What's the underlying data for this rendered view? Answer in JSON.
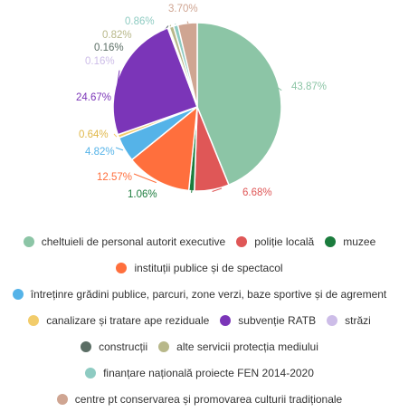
{
  "chart_data": {
    "type": "pie",
    "title": "",
    "series": [
      {
        "name": "cheltuieli de personal autorit executive",
        "value": 43.87,
        "label": "43.87%",
        "color": "#8cc5a6"
      },
      {
        "name": "poliție locală",
        "value": 6.68,
        "label": "6.68%",
        "color": "#df5757"
      },
      {
        "name": "muzee",
        "value": 1.06,
        "label": "1.06%",
        "color": "#1b7c3d"
      },
      {
        "name": "instituții publice și de spectacol",
        "value": 12.57,
        "label": "12.57%",
        "color": "#ff6f3d"
      },
      {
        "name": "întreținre grădini publice, parcuri, zone verzi, baze sportive și de agrement",
        "value": 4.82,
        "label": "4.82%",
        "color": "#55b3e8"
      },
      {
        "name": "canalizare și tratare ape reziduale",
        "value": 0.64,
        "label": "0.64%",
        "color": "#f2cc6b"
      },
      {
        "name": "subvenție RATB",
        "value": 24.67,
        "label": "24.67%",
        "color": "#7b35b8"
      },
      {
        "name": "străzi",
        "value": 0.16,
        "label": "0.16%",
        "color": "#cdbde8"
      },
      {
        "name": "construcții",
        "value": 0.16,
        "label": "0.16%",
        "color": "#5b6e65"
      },
      {
        "name": "alte servicii protecția mediului",
        "value": 0.82,
        "label": "0.82%",
        "color": "#b8b88a"
      },
      {
        "name": "finanțare națională proiecte FEN 2014-2020",
        "value": 0.86,
        "label": "0.86%",
        "color": "#8ecbc2"
      },
      {
        "name": "centre pt conservarea și promovarea culturii tradiționale",
        "value": 3.7,
        "label": "3.70%",
        "color": "#cfa592"
      }
    ],
    "legend_position": "bottom",
    "legend_rows": [
      [
        0,
        1,
        2
      ],
      [
        3
      ],
      [
        4
      ],
      [
        5,
        6,
        7
      ],
      [
        8,
        9
      ],
      [
        10
      ],
      [
        11
      ]
    ]
  }
}
